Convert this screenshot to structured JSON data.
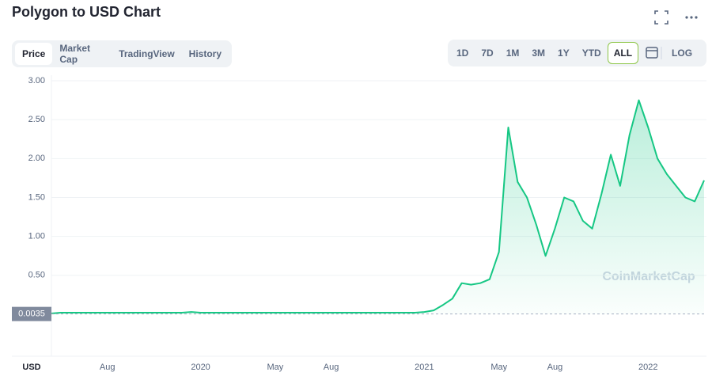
{
  "ui": {
    "title": "Polygon to USD Chart",
    "tabs": [
      "Price",
      "Market Cap",
      "TradingView",
      "History"
    ],
    "ranges": [
      "1D",
      "7D",
      "1M",
      "3M",
      "1Y",
      "YTD",
      "ALL"
    ],
    "log": "LOG",
    "watermark": "CoinMarketCap",
    "currency": "USD"
  },
  "chart_data": {
    "type": "line",
    "color": "#16c784",
    "grid": true,
    "categories": [
      null,
      null,
      null,
      null,
      null,
      null,
      "Aug",
      null,
      null,
      null,
      null,
      null,
      null,
      null,
      null,
      null,
      "2020",
      null,
      null,
      null,
      null,
      null,
      null,
      null,
      "May",
      null,
      null,
      null,
      null,
      null,
      "Aug",
      null,
      null,
      null,
      null,
      null,
      null,
      null,
      null,
      null,
      "2021",
      null,
      null,
      null,
      null,
      null,
      null,
      null,
      "May",
      null,
      null,
      null,
      null,
      null,
      "Aug",
      null,
      null,
      null,
      null,
      null,
      null,
      null,
      null,
      null,
      "2022",
      null,
      null,
      null,
      null,
      null,
      null
    ],
    "values": [
      0.01,
      0.02,
      0.02,
      0.02,
      0.02,
      0.02,
      0.02,
      0.02,
      0.02,
      0.02,
      0.02,
      0.02,
      0.02,
      0.02,
      0.02,
      0.03,
      0.02,
      0.02,
      0.02,
      0.02,
      0.02,
      0.02,
      0.02,
      0.02,
      0.02,
      0.02,
      0.02,
      0.02,
      0.02,
      0.02,
      0.02,
      0.02,
      0.02,
      0.02,
      0.02,
      0.02,
      0.02,
      0.02,
      0.02,
      0.02,
      0.03,
      0.05,
      0.12,
      0.2,
      0.4,
      0.38,
      0.4,
      0.45,
      0.8,
      2.4,
      1.7,
      1.5,
      1.15,
      0.75,
      1.1,
      1.5,
      1.45,
      1.2,
      1.1,
      1.55,
      2.05,
      1.65,
      2.3,
      2.75,
      2.4,
      2.0,
      1.8,
      1.65,
      1.5,
      1.45,
      1.72
    ],
    "ylim": [
      0,
      3
    ],
    "yticks": [
      {
        "value": 0.5,
        "label": "0.50"
      },
      {
        "value": 1,
        "label": "1.00"
      },
      {
        "value": 1.5,
        "label": "1.50"
      },
      {
        "value": 2,
        "label": "2.00"
      },
      {
        "value": 2.5,
        "label": "2.50"
      },
      {
        "value": 3,
        "label": "3.00"
      }
    ],
    "reference_price": 0.0035
  }
}
